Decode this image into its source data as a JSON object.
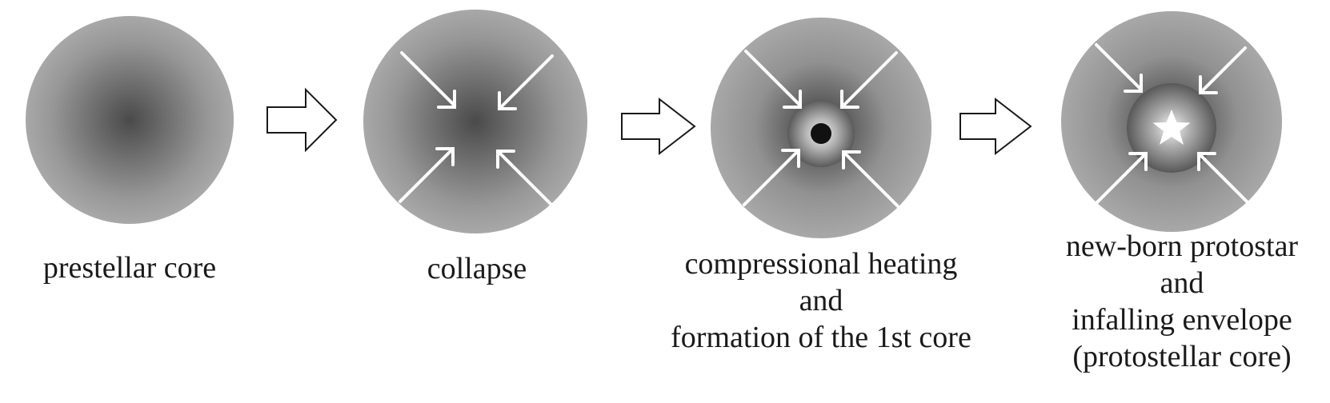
{
  "stages": [
    {
      "id": "prestellar",
      "caption": [
        "prestellar core"
      ]
    },
    {
      "id": "collapse",
      "caption": [
        "collapse"
      ]
    },
    {
      "id": "first-core",
      "caption": [
        "compressional heating",
        "and",
        "formation of the 1st core"
      ]
    },
    {
      "id": "protostar",
      "caption": [
        "new-born protostar",
        "and",
        "infalling envelope",
        "(protostellar core)"
      ]
    }
  ],
  "colors": {
    "sphere_outer": "#a3a3a3",
    "sphere_center": "#4a4a4a",
    "inflow_arrows": "#ffffff",
    "first_core_dot": "#111111",
    "protostar": "#ffffff",
    "transition_arrow_fill": "#ffffff",
    "transition_arrow_stroke": "#1a1a1a",
    "text": "#1a1a1a"
  },
  "icons": [
    "transition-arrow-icon",
    "inflow-arrow-icon",
    "star-icon"
  ]
}
